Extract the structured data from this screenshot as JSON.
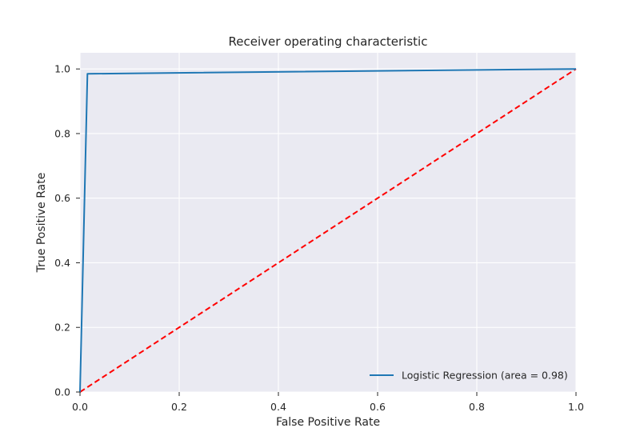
{
  "colors": {
    "plot_background": "#EAEAF2",
    "grid": "#FFFFFF",
    "roc_line": "#1F77B4",
    "diagonal_line": "#FF0000",
    "text": "#262626"
  },
  "chart_data": {
    "type": "line",
    "title": "Receiver operating characteristic",
    "xlabel": "False Positive Rate",
    "ylabel": "True Positive Rate",
    "xlim": [
      0.0,
      1.0
    ],
    "ylim": [
      0.0,
      1.05
    ],
    "xticks": [
      0.0,
      0.2,
      0.4,
      0.6,
      0.8,
      1.0
    ],
    "yticks": [
      0.0,
      0.2,
      0.4,
      0.6,
      0.8,
      1.0
    ],
    "xtick_labels": [
      "0.0",
      "0.2",
      "0.4",
      "0.6",
      "0.8",
      "1.0"
    ],
    "ytick_labels": [
      "0.0",
      "0.2",
      "0.4",
      "0.6",
      "0.8",
      "1.0"
    ],
    "grid": true,
    "legend_position": "lower-right",
    "series": [
      {
        "name": "Logistic Regression (area = 0.98)",
        "style": "solid",
        "color": "#1F77B4",
        "x": [
          0.0,
          0.015,
          1.0
        ],
        "y": [
          0.0,
          0.985,
          1.0
        ]
      },
      {
        "style": "dashed",
        "color": "#FF0000",
        "x": [
          0.0,
          1.0
        ],
        "y": [
          0.0,
          1.0
        ]
      }
    ]
  }
}
